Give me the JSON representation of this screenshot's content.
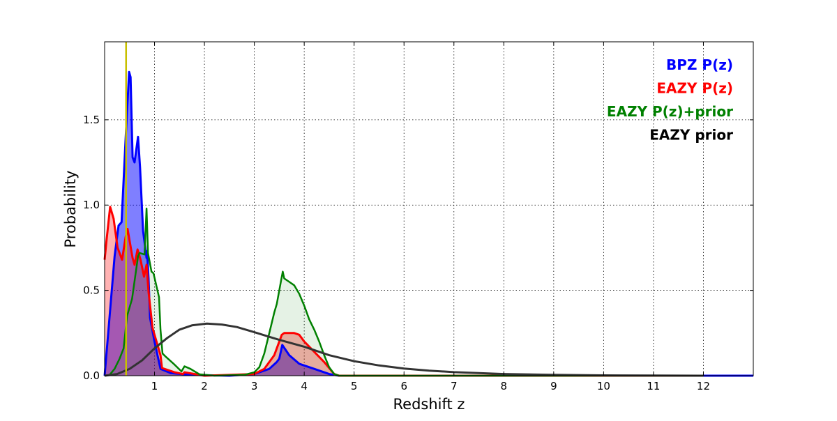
{
  "chart_data": {
    "type": "area",
    "xlabel": "Redshift z",
    "ylabel": "Probability",
    "xlim": [
      0,
      13
    ],
    "ylim": [
      0,
      1.957
    ],
    "grid": true,
    "legend_position": "top-right",
    "xticks": [
      1,
      2,
      3,
      4,
      5,
      6,
      7,
      8,
      9,
      10,
      11,
      12
    ],
    "xtick_labels": [
      "1",
      "2",
      "3",
      "4",
      "5",
      "6",
      "7",
      "8",
      "9",
      "10",
      "11",
      "12"
    ],
    "yticks": [
      0,
      0.5,
      1.0,
      1.5
    ],
    "ytick_labels": [
      "0.0",
      "0.5",
      "1.0",
      "1.5"
    ],
    "vertical_marker": {
      "z": 0.43,
      "color": "#c8c000"
    },
    "series": [
      {
        "name": "BPZ P(z)",
        "color": "#0000ff",
        "fill": "rgba(0,0,255,0.5)",
        "points": [
          [
            0,
            0
          ],
          [
            0.1,
            0.35
          ],
          [
            0.2,
            0.7
          ],
          [
            0.28,
            0.88
          ],
          [
            0.34,
            0.9
          ],
          [
            0.42,
            1.38
          ],
          [
            0.49,
            1.78
          ],
          [
            0.52,
            1.75
          ],
          [
            0.56,
            1.28
          ],
          [
            0.6,
            1.25
          ],
          [
            0.67,
            1.4
          ],
          [
            0.71,
            1.22
          ],
          [
            0.77,
            0.85
          ],
          [
            0.84,
            0.69
          ],
          [
            0.85,
            0.73
          ],
          [
            0.88,
            0.57
          ],
          [
            0.91,
            0.34
          ],
          [
            1.0,
            0.2
          ],
          [
            1.12,
            0.04
          ],
          [
            1.33,
            0.015
          ],
          [
            1.7,
            0.005
          ],
          [
            2.5,
            0
          ],
          [
            3.0,
            0.01
          ],
          [
            3.3,
            0.04
          ],
          [
            3.45,
            0.08
          ],
          [
            3.5,
            0.1
          ],
          [
            3.56,
            0.18
          ],
          [
            3.7,
            0.12
          ],
          [
            3.9,
            0.07
          ],
          [
            4.2,
            0.04
          ],
          [
            4.5,
            0.01
          ],
          [
            4.7,
            0
          ],
          [
            13,
            0
          ]
        ]
      },
      {
        "name": "EAZY P(z)",
        "color": "#ff0000",
        "fill": "rgba(255,0,0,0.3)",
        "points": [
          [
            0,
            0.68
          ],
          [
            0.04,
            0.8
          ],
          [
            0.11,
            0.99
          ],
          [
            0.18,
            0.92
          ],
          [
            0.26,
            0.75
          ],
          [
            0.35,
            0.68
          ],
          [
            0.42,
            0.81
          ],
          [
            0.46,
            0.86
          ],
          [
            0.56,
            0.69
          ],
          [
            0.6,
            0.65
          ],
          [
            0.66,
            0.74
          ],
          [
            0.72,
            0.68
          ],
          [
            0.79,
            0.58
          ],
          [
            0.84,
            0.65
          ],
          [
            0.88,
            0.49
          ],
          [
            0.96,
            0.28
          ],
          [
            1.12,
            0.12
          ],
          [
            1.15,
            0.045
          ],
          [
            1.4,
            0.02
          ],
          [
            1.57,
            0.01
          ],
          [
            1.6,
            0.02
          ],
          [
            2.0,
            0
          ],
          [
            3.0,
            0.01
          ],
          [
            3.2,
            0.04
          ],
          [
            3.4,
            0.12
          ],
          [
            3.55,
            0.24
          ],
          [
            3.6,
            0.25
          ],
          [
            3.8,
            0.25
          ],
          [
            3.9,
            0.24
          ],
          [
            4.0,
            0.2
          ],
          [
            4.2,
            0.14
          ],
          [
            4.4,
            0.08
          ],
          [
            4.6,
            0.01
          ],
          [
            4.7,
            0
          ],
          [
            12,
            0
          ]
        ]
      },
      {
        "name": "EAZY P(z)+prior",
        "color": "#008000",
        "fill": "rgba(0,128,0,0.1)",
        "points": [
          [
            0,
            0
          ],
          [
            0.1,
            0.005
          ],
          [
            0.2,
            0.04
          ],
          [
            0.3,
            0.1
          ],
          [
            0.38,
            0.16
          ],
          [
            0.45,
            0.35
          ],
          [
            0.55,
            0.45
          ],
          [
            0.67,
            0.7
          ],
          [
            0.7,
            0.72
          ],
          [
            0.8,
            0.71
          ],
          [
            0.84,
            0.98
          ],
          [
            0.87,
            0.72
          ],
          [
            0.94,
            0.61
          ],
          [
            0.98,
            0.6
          ],
          [
            1.09,
            0.46
          ],
          [
            1.12,
            0.27
          ],
          [
            1.16,
            0.13
          ],
          [
            1.23,
            0.11
          ],
          [
            1.4,
            0.065
          ],
          [
            1.54,
            0.025
          ],
          [
            1.6,
            0.055
          ],
          [
            1.72,
            0.04
          ],
          [
            1.9,
            0.008
          ],
          [
            2.2,
            0
          ],
          [
            2.8,
            0.005
          ],
          [
            3.0,
            0.02
          ],
          [
            3.1,
            0.05
          ],
          [
            3.2,
            0.13
          ],
          [
            3.3,
            0.25
          ],
          [
            3.4,
            0.37
          ],
          [
            3.45,
            0.42
          ],
          [
            3.55,
            0.58
          ],
          [
            3.57,
            0.61
          ],
          [
            3.6,
            0.57
          ],
          [
            3.7,
            0.55
          ],
          [
            3.8,
            0.53
          ],
          [
            3.9,
            0.48
          ],
          [
            4.0,
            0.41
          ],
          [
            4.1,
            0.33
          ],
          [
            4.2,
            0.27
          ],
          [
            4.3,
            0.2
          ],
          [
            4.4,
            0.12
          ],
          [
            4.5,
            0.05
          ],
          [
            4.6,
            0.01
          ],
          [
            4.7,
            0
          ],
          [
            12,
            0
          ]
        ]
      },
      {
        "name": "EAZY prior",
        "color": "#333333",
        "fill": null,
        "points": [
          [
            0,
            0
          ],
          [
            0.25,
            0.01
          ],
          [
            0.5,
            0.04
          ],
          [
            0.75,
            0.09
          ],
          [
            1.0,
            0.16
          ],
          [
            1.25,
            0.22
          ],
          [
            1.5,
            0.27
          ],
          [
            1.75,
            0.295
          ],
          [
            2.05,
            0.305
          ],
          [
            2.35,
            0.3
          ],
          [
            2.65,
            0.285
          ],
          [
            3.0,
            0.255
          ],
          [
            3.5,
            0.21
          ],
          [
            4.0,
            0.17
          ],
          [
            4.5,
            0.12
          ],
          [
            5.0,
            0.085
          ],
          [
            5.5,
            0.06
          ],
          [
            6.0,
            0.042
          ],
          [
            6.5,
            0.03
          ],
          [
            7.0,
            0.021
          ],
          [
            7.5,
            0.015
          ],
          [
            8.0,
            0.01
          ],
          [
            9.0,
            0.005
          ],
          [
            10.0,
            0.002
          ],
          [
            11.0,
            0.001
          ],
          [
            12.0,
            0
          ]
        ]
      }
    ]
  }
}
